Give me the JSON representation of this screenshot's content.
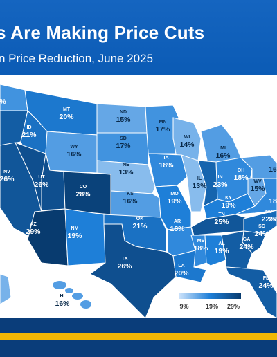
{
  "header": {
    "title": "s Are Making Price Cuts",
    "subtitle": "n  Price Reduction, June 2025"
  },
  "colors": {
    "header_bg": "#0b5bb5",
    "footer_bg": "#0a3d7a",
    "footer_stripe": "#f2b705",
    "scale": [
      "#cfe4fb",
      "#1e7fd8",
      "#083b6f"
    ]
  },
  "legend": {
    "min_label": "9%",
    "mid_label": "19%",
    "max_label": "29%"
  },
  "states": [
    {
      "abbr": "MT",
      "value": "20%",
      "pct": 20
    },
    {
      "abbr": "ND",
      "value": "15%",
      "pct": 15
    },
    {
      "abbr": "MN",
      "value": "17%",
      "pct": 17
    },
    {
      "abbr": "ID",
      "value": "21%",
      "pct": 21
    },
    {
      "abbr": "WY",
      "value": "16%",
      "pct": 16
    },
    {
      "abbr": "SD",
      "value": "17%",
      "pct": 17
    },
    {
      "abbr": "WI",
      "value": "14%",
      "pct": 14
    },
    {
      "abbr": "MI",
      "value": "16%",
      "pct": 16
    },
    {
      "abbr": "NV",
      "value": "26%",
      "pct": 26
    },
    {
      "abbr": "UT",
      "value": "26%",
      "pct": 26
    },
    {
      "abbr": "CO",
      "value": "28%",
      "pct": 28
    },
    {
      "abbr": "NE",
      "value": "13%",
      "pct": 13
    },
    {
      "abbr": "IA",
      "value": "18%",
      "pct": 18
    },
    {
      "abbr": "IL",
      "value": "13%",
      "pct": 13
    },
    {
      "abbr": "IN",
      "value": "23%",
      "pct": 23
    },
    {
      "abbr": "OH",
      "value": "18%",
      "pct": 18
    },
    {
      "abbr": "KS",
      "value": "16%",
      "pct": 16
    },
    {
      "abbr": "MO",
      "value": "19%",
      "pct": 19
    },
    {
      "abbr": "KY",
      "value": "19%",
      "pct": 19
    },
    {
      "abbr": "WV",
      "value": "15%",
      "pct": 15
    },
    {
      "abbr": "AZ",
      "value": "29%",
      "pct": 29
    },
    {
      "abbr": "NM",
      "value": "19%",
      "pct": 19
    },
    {
      "abbr": "OK",
      "value": "21%",
      "pct": 21
    },
    {
      "abbr": "AR",
      "value": "18%",
      "pct": 18
    },
    {
      "abbr": "TN",
      "value": "25%",
      "pct": 25
    },
    {
      "abbr": "NC",
      "value": "22%",
      "pct": 22
    },
    {
      "abbr": "SC",
      "value": "24%",
      "pct": 24
    },
    {
      "abbr": "MS",
      "value": "18%",
      "pct": 18
    },
    {
      "abbr": "AL",
      "value": "19%",
      "pct": 19
    },
    {
      "abbr": "GA",
      "value": "24%",
      "pct": 24
    },
    {
      "abbr": "TX",
      "value": "26%",
      "pct": 26
    },
    {
      "abbr": "LA",
      "value": "20%",
      "pct": 20
    },
    {
      "abbr": "FL",
      "value": "24%",
      "pct": 24
    },
    {
      "abbr": "HI",
      "value": "16%",
      "pct": 16
    }
  ],
  "partial_labels": {
    "wa_value": "%",
    "pa_value": "16",
    "va_value": "18",
    "de_value": "22"
  }
}
